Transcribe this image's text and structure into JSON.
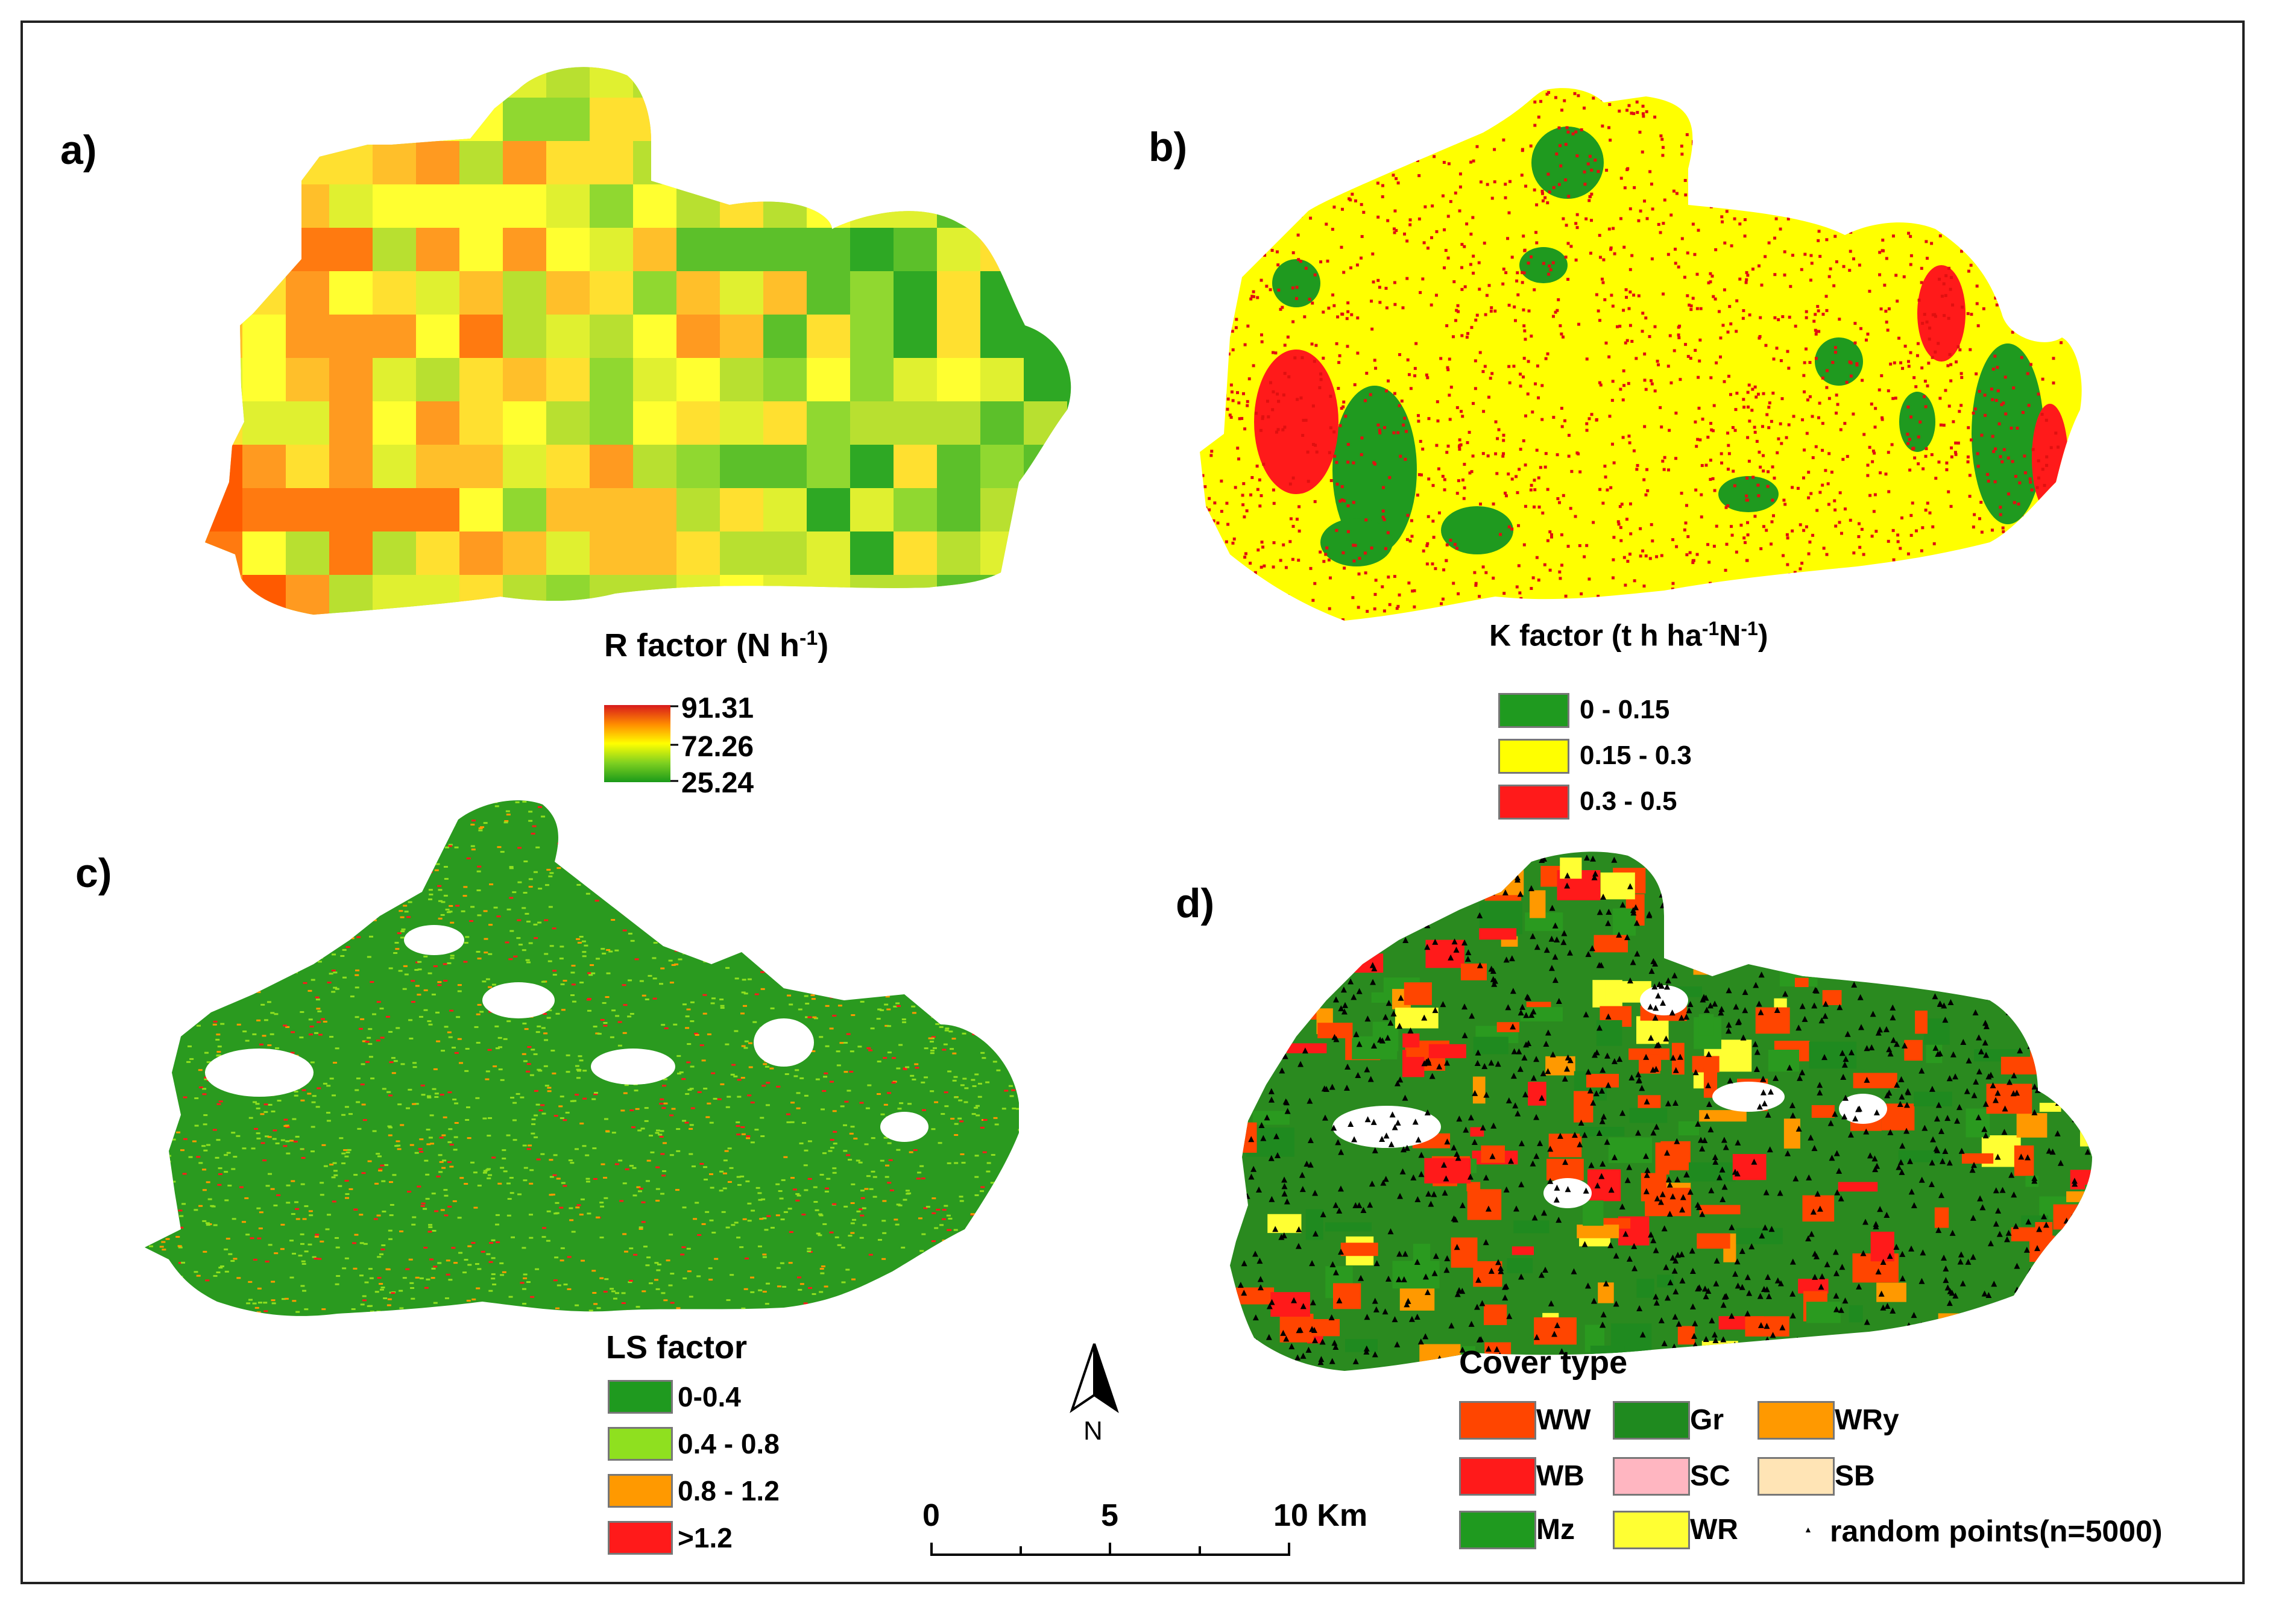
{
  "panels": {
    "a": {
      "letter": "a)",
      "legend_title": "R factor (N h",
      "legend_title_sup": "-1",
      "legend_title_end": ")",
      "ramp_max": "91.31",
      "ramp_mid": "72.26",
      "ramp_min": "25.24",
      "ramp_colors": [
        "#d7191c",
        "#ff8c00",
        "#ffff00",
        "#7fd020",
        "#1a9a1a"
      ]
    },
    "b": {
      "letter": "b)",
      "legend_title": "K factor (t h ha",
      "legend_title_sup1": "-1",
      "legend_title_mid": "N",
      "legend_title_sup2": "-1",
      "legend_title_end": ")",
      "classes": [
        {
          "label": "0 - 0.15",
          "color": "#1f9a1f"
        },
        {
          "label": "0.15 - 0.3",
          "color": "#ffff00"
        },
        {
          "label": "0.3 - 0.5",
          "color": "#ff1a1a"
        }
      ]
    },
    "c": {
      "letter": "c)",
      "legend_title": "LS factor",
      "classes": [
        {
          "label": "0-0.4",
          "color": "#1f9a1f"
        },
        {
          "label": "0.4 - 0.8",
          "color": "#8fe01f"
        },
        {
          "label": "0.8 - 1.2",
          "color": "#ff9900"
        },
        {
          "label": ">1.2",
          "color": "#ff1a1a"
        }
      ]
    },
    "d": {
      "letter": "d)",
      "legend_title": "Cover type",
      "classes": [
        {
          "label": "WW",
          "color": "#ff4500"
        },
        {
          "label": "Gr",
          "color": "#1f8a1f"
        },
        {
          "label": "WRy",
          "color": "#ff9900"
        },
        {
          "label": "WB",
          "color": "#ff1a1a"
        },
        {
          "label": "SC",
          "color": "#ffb6c1"
        },
        {
          "label": "SB",
          "color": "#ffe4b5"
        },
        {
          "label": "Mz",
          "color": "#1f9a1f"
        },
        {
          "label": "WR",
          "color": "#ffff33"
        }
      ],
      "points_label": "random points(n=5000)"
    }
  },
  "north_arrow": {
    "label": "N"
  },
  "scale_bar": {
    "ticks": [
      "0",
      "5",
      "10 Km"
    ]
  }
}
